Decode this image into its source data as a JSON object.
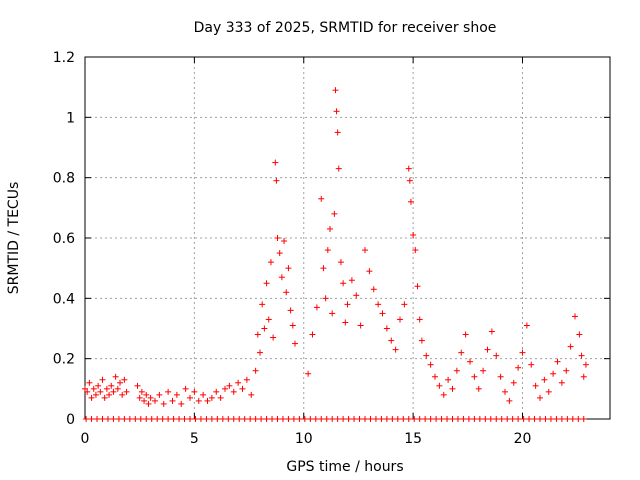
{
  "chart_data": {
    "type": "scatter",
    "title": "Day 333 of 2025, SRMTID for receiver shoe",
    "xlabel": "GPS time / hours",
    "ylabel": "SRMTID / TECUs",
    "xlim": [
      0,
      24
    ],
    "ylim": [
      0,
      1.2
    ],
    "xticks": [
      0,
      5,
      10,
      15,
      20
    ],
    "xtick_labels": [
      "0",
      "5",
      "10",
      "15",
      "20"
    ],
    "yticks": [
      0,
      0.2,
      0.4,
      0.6,
      0.8,
      1.0,
      1.2
    ],
    "ytick_labels": [
      "0",
      "0.2",
      "0.4",
      "0.6",
      "0.8",
      "1",
      "1.2"
    ],
    "grid": true,
    "marker": "+",
    "series_color": "#ff0000",
    "series": [
      {
        "name": "SRMTID",
        "points": [
          [
            0.0,
            0.1
          ],
          [
            0.1,
            0.09
          ],
          [
            0.2,
            0.12
          ],
          [
            0.3,
            0.07
          ],
          [
            0.4,
            0.1
          ],
          [
            0.5,
            0.08
          ],
          [
            0.6,
            0.11
          ],
          [
            0.7,
            0.09
          ],
          [
            0.8,
            0.13
          ],
          [
            0.9,
            0.07
          ],
          [
            1.0,
            0.1
          ],
          [
            1.1,
            0.08
          ],
          [
            1.2,
            0.11
          ],
          [
            1.3,
            0.09
          ],
          [
            1.4,
            0.14
          ],
          [
            1.5,
            0.1
          ],
          [
            1.6,
            0.12
          ],
          [
            1.7,
            0.08
          ],
          [
            1.8,
            0.13
          ],
          [
            1.9,
            0.09
          ],
          [
            2.4,
            0.11
          ],
          [
            2.5,
            0.07
          ],
          [
            2.6,
            0.09
          ],
          [
            2.7,
            0.06
          ],
          [
            2.8,
            0.08
          ],
          [
            2.9,
            0.05
          ],
          [
            3.0,
            0.07
          ],
          [
            3.2,
            0.06
          ],
          [
            3.4,
            0.08
          ],
          [
            3.6,
            0.05
          ],
          [
            3.8,
            0.09
          ],
          [
            4.0,
            0.06
          ],
          [
            4.2,
            0.08
          ],
          [
            4.4,
            0.05
          ],
          [
            4.6,
            0.1
          ],
          [
            4.8,
            0.07
          ],
          [
            5.0,
            0.09
          ],
          [
            5.2,
            0.06
          ],
          [
            5.4,
            0.08
          ],
          [
            5.6,
            0.06
          ],
          [
            5.8,
            0.07
          ],
          [
            6.0,
            0.09
          ],
          [
            6.2,
            0.07
          ],
          [
            6.4,
            0.1
          ],
          [
            6.6,
            0.11
          ],
          [
            6.8,
            0.09
          ],
          [
            7.0,
            0.12
          ],
          [
            7.2,
            0.1
          ],
          [
            7.4,
            0.13
          ],
          [
            7.6,
            0.08
          ],
          [
            7.8,
            0.16
          ],
          [
            7.9,
            0.28
          ],
          [
            8.0,
            0.22
          ],
          [
            8.1,
            0.38
          ],
          [
            8.2,
            0.3
          ],
          [
            8.3,
            0.45
          ],
          [
            8.4,
            0.33
          ],
          [
            8.5,
            0.52
          ],
          [
            8.6,
            0.27
          ],
          [
            8.7,
            0.85
          ],
          [
            8.75,
            0.79
          ],
          [
            8.8,
            0.6
          ],
          [
            8.9,
            0.55
          ],
          [
            9.0,
            0.47
          ],
          [
            9.1,
            0.59
          ],
          [
            9.2,
            0.42
          ],
          [
            9.3,
            0.5
          ],
          [
            9.4,
            0.36
          ],
          [
            9.5,
            0.31
          ],
          [
            9.6,
            0.25
          ],
          [
            10.2,
            0.15
          ],
          [
            10.4,
            0.28
          ],
          [
            10.6,
            0.37
          ],
          [
            10.8,
            0.73
          ],
          [
            10.9,
            0.5
          ],
          [
            11.0,
            0.4
          ],
          [
            11.1,
            0.56
          ],
          [
            11.2,
            0.63
          ],
          [
            11.3,
            0.35
          ],
          [
            11.4,
            0.68
          ],
          [
            11.45,
            1.09
          ],
          [
            11.5,
            1.02
          ],
          [
            11.55,
            0.95
          ],
          [
            11.6,
            0.83
          ],
          [
            11.7,
            0.52
          ],
          [
            11.8,
            0.45
          ],
          [
            11.9,
            0.32
          ],
          [
            12.0,
            0.38
          ],
          [
            12.2,
            0.46
          ],
          [
            12.4,
            0.41
          ],
          [
            12.6,
            0.31
          ],
          [
            12.8,
            0.56
          ],
          [
            13.0,
            0.49
          ],
          [
            13.2,
            0.43
          ],
          [
            13.4,
            0.38
          ],
          [
            13.6,
            0.35
          ],
          [
            13.8,
            0.3
          ],
          [
            14.0,
            0.26
          ],
          [
            14.2,
            0.23
          ],
          [
            14.4,
            0.33
          ],
          [
            14.6,
            0.38
          ],
          [
            14.8,
            0.83
          ],
          [
            14.85,
            0.79
          ],
          [
            14.9,
            0.72
          ],
          [
            15.0,
            0.61
          ],
          [
            15.1,
            0.56
          ],
          [
            15.2,
            0.44
          ],
          [
            15.3,
            0.33
          ],
          [
            15.4,
            0.26
          ],
          [
            15.6,
            0.21
          ],
          [
            15.8,
            0.18
          ],
          [
            16.0,
            0.14
          ],
          [
            16.2,
            0.11
          ],
          [
            16.4,
            0.08
          ],
          [
            16.6,
            0.13
          ],
          [
            16.8,
            0.1
          ],
          [
            17.0,
            0.16
          ],
          [
            17.2,
            0.22
          ],
          [
            17.4,
            0.28
          ],
          [
            17.6,
            0.19
          ],
          [
            17.8,
            0.14
          ],
          [
            18.0,
            0.1
          ],
          [
            18.2,
            0.16
          ],
          [
            18.4,
            0.23
          ],
          [
            18.6,
            0.29
          ],
          [
            18.8,
            0.21
          ],
          [
            19.0,
            0.14
          ],
          [
            19.2,
            0.09
          ],
          [
            19.4,
            0.06
          ],
          [
            19.6,
            0.12
          ],
          [
            19.8,
            0.17
          ],
          [
            20.0,
            0.22
          ],
          [
            20.2,
            0.31
          ],
          [
            20.4,
            0.18
          ],
          [
            20.6,
            0.11
          ],
          [
            20.8,
            0.07
          ],
          [
            21.0,
            0.13
          ],
          [
            21.2,
            0.09
          ],
          [
            21.4,
            0.15
          ],
          [
            21.6,
            0.19
          ],
          [
            21.8,
            0.12
          ],
          [
            22.0,
            0.16
          ],
          [
            22.2,
            0.24
          ],
          [
            22.4,
            0.34
          ],
          [
            22.6,
            0.28
          ],
          [
            22.7,
            0.21
          ],
          [
            22.8,
            0.14
          ],
          [
            22.9,
            0.18
          ]
        ],
        "zero_points_x": [
          0.05,
          0.3,
          0.55,
          0.8,
          1.05,
          1.3,
          1.55,
          1.8,
          2.05,
          2.3,
          2.55,
          2.8,
          3.05,
          3.3,
          3.55,
          3.8,
          4.05,
          4.3,
          4.55,
          4.8,
          5.05,
          5.3,
          5.55,
          5.8,
          6.05,
          6.3,
          6.55,
          6.8,
          7.05,
          7.3,
          7.55,
          7.8,
          8.05,
          8.3,
          8.55,
          8.8,
          9.05,
          9.3,
          9.55,
          9.8,
          10.05,
          10.3,
          10.55,
          10.8,
          11.05,
          11.3,
          11.55,
          11.8,
          12.05,
          12.3,
          12.55,
          12.8,
          13.05,
          13.3,
          13.55,
          13.8,
          14.05,
          14.3,
          14.55,
          14.8,
          15.05,
          15.3,
          15.55,
          15.8,
          16.05,
          16.3,
          16.55,
          16.8,
          17.05,
          17.3,
          17.55,
          17.8,
          18.05,
          18.3,
          18.55,
          18.8,
          19.05,
          19.3,
          19.55,
          19.8,
          20.05,
          20.3,
          20.55,
          20.8,
          21.05,
          21.3,
          21.55,
          21.8,
          22.05,
          22.3,
          22.55,
          22.8
        ]
      }
    ]
  }
}
